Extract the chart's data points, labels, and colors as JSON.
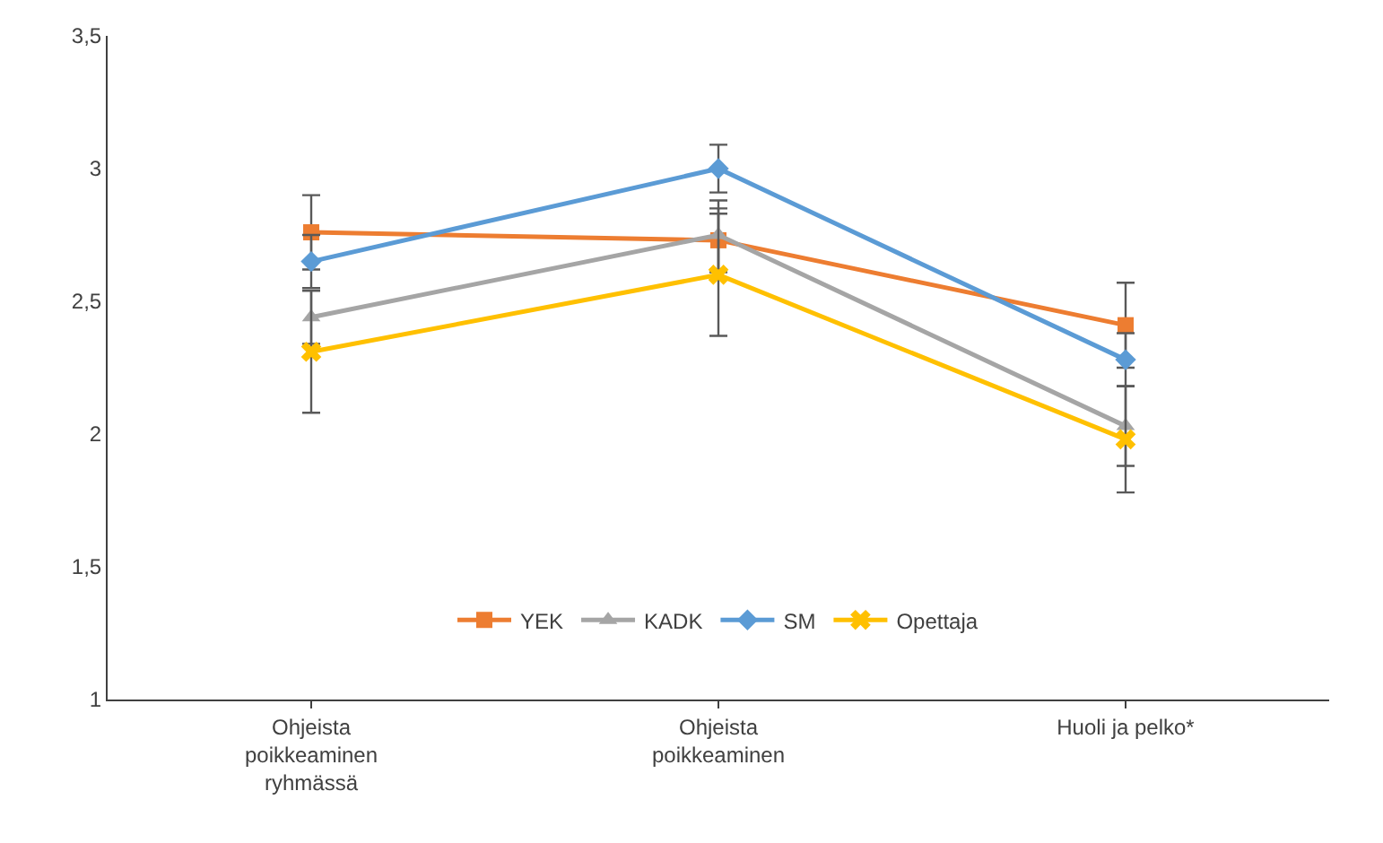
{
  "chart_data": {
    "type": "line",
    "categories": [
      "Ohjeista poikkeaminen ryhmässä",
      "Ohjeista poikkeaminen",
      "Huoli ja pelko*"
    ],
    "ylim": [
      1,
      3.5
    ],
    "yticks": [
      1,
      {
        "value": 1.5,
        "label": "1,5"
      },
      2,
      {
        "value": 2.5,
        "label": "2,5"
      },
      3,
      {
        "value": 3.5,
        "label": "3,5"
      }
    ],
    "grid": false,
    "legend": "bottom",
    "line_style": "solid",
    "series": [
      {
        "name": "YEK",
        "color": "#ed7d31",
        "marker": "square",
        "values": [
          2.76,
          2.73,
          2.41
        ],
        "errors": [
          0.14,
          0.12,
          0.16
        ]
      },
      {
        "name": "KADK",
        "color": "#a5a5a5",
        "marker": "triangle",
        "values": [
          2.44,
          2.75,
          2.03
        ],
        "errors": [
          0.1,
          0.13,
          0.15
        ]
      },
      {
        "name": "SM",
        "color": "#5b9bd5",
        "marker": "diamond",
        "values": [
          2.65,
          3.0,
          2.28
        ],
        "errors": [
          0.1,
          0.09,
          0.1
        ]
      },
      {
        "name": "Opettaja",
        "color": "#ffc000",
        "marker": "cross",
        "values": [
          2.31,
          2.6,
          1.98
        ],
        "errors": [
          0.23,
          0.23,
          0.2
        ]
      }
    ]
  }
}
